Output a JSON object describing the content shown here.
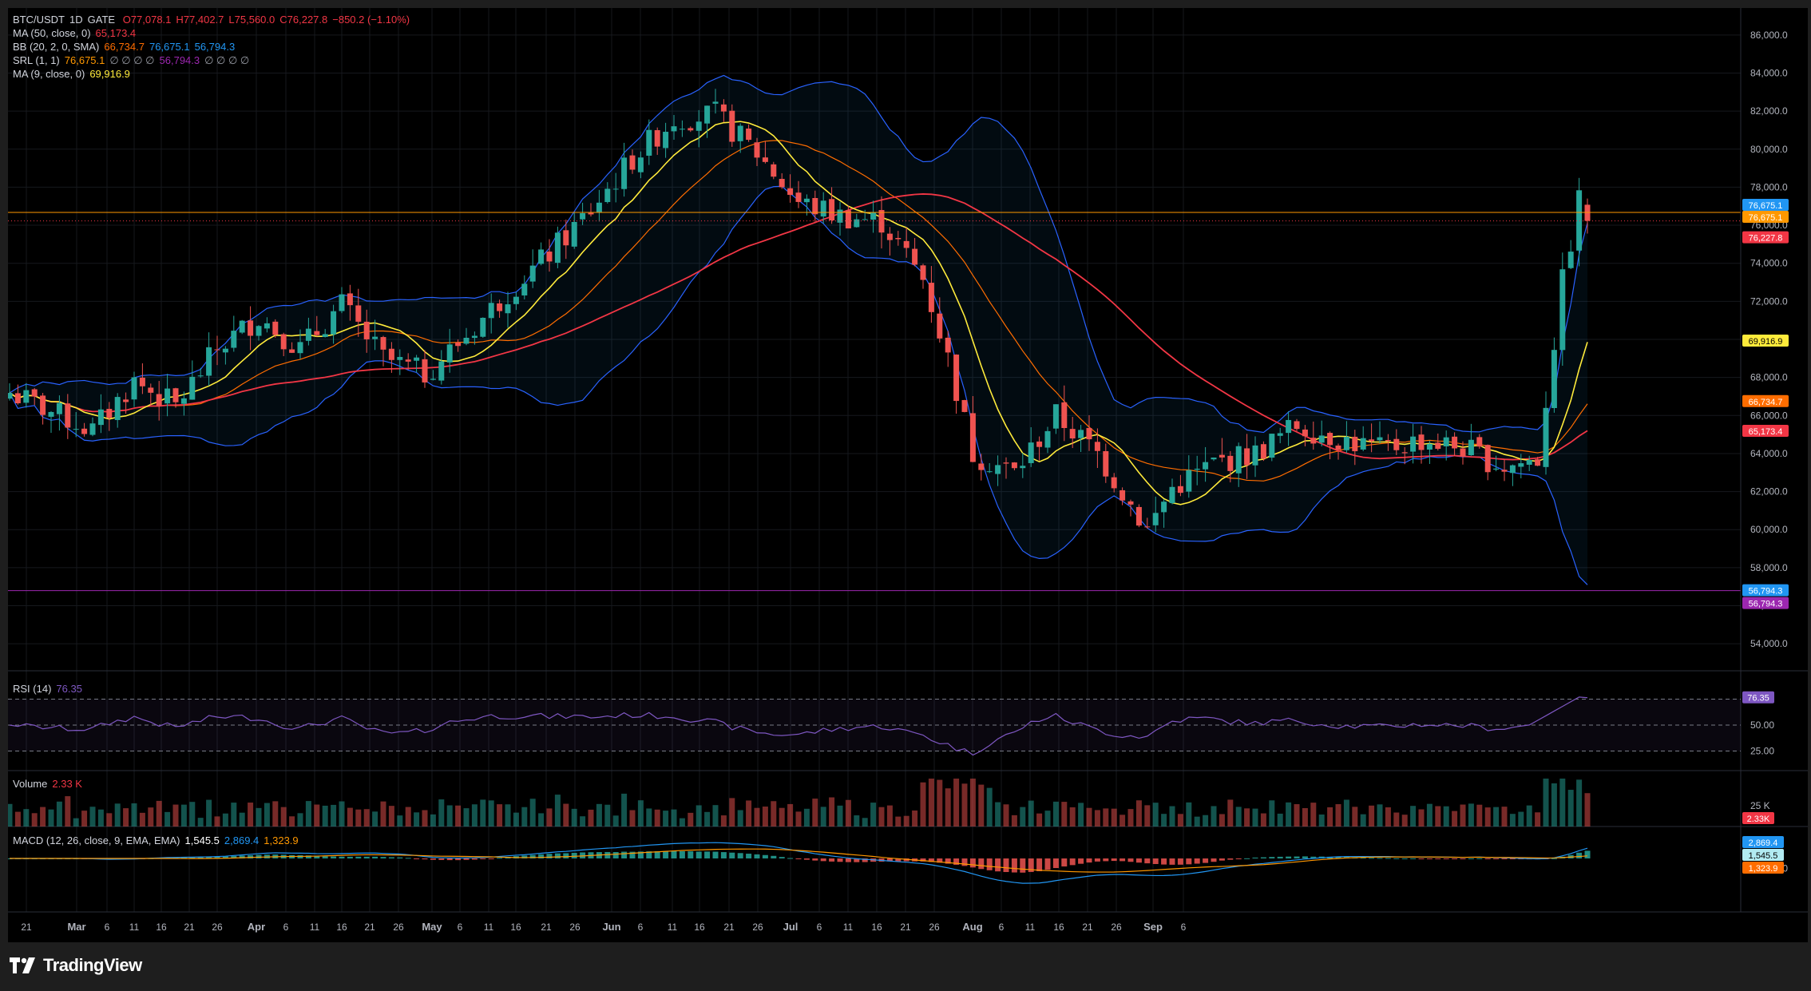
{
  "header": {
    "symbol": "BTC/USDT",
    "interval": "1D",
    "exchange": "GATE",
    "open": "O77,078.1",
    "high": "H77,402.7",
    "low": "L75,560.0",
    "close": "C76,227.8",
    "change": "−850.2 (−1.10%)"
  },
  "indicators": {
    "ma50": {
      "label": "MA (50, close, 0)",
      "value": "65,173.4"
    },
    "bb": {
      "label": "BB (20, 2, 0, SMA)",
      "basis": "66,734.7",
      "upper": "76,675.1",
      "lower": "56,794.3"
    },
    "srl": {
      "label": "SRL (1, 1)",
      "v1": "76,675.1",
      "mid": "∅ ∅ ∅ ∅",
      "v2": "56,794.3",
      "tail": "∅ ∅ ∅ ∅"
    },
    "ma9": {
      "label": "MA (9, close, 0)",
      "value": "69,916.9"
    },
    "rsi": {
      "label": "RSI (14)",
      "value": "76.35"
    },
    "volume": {
      "label": "Volume",
      "value": "2.33 K"
    },
    "macd": {
      "label": "MACD (12, 26, close, 9, EMA, EMA)",
      "hist": "1,545.5",
      "macd": "2,869.4",
      "signal": "1,323.9"
    }
  },
  "price_tags": [
    {
      "text": "76,675.1",
      "color": "#2196f3"
    },
    {
      "text": "76,675.1",
      "color": "#ff9800"
    },
    {
      "text": "76,227.8",
      "color": "#f23645"
    },
    {
      "text": "69,916.9",
      "color": "#ffeb3b"
    },
    {
      "text": "66,734.7",
      "color": "#ff6d00"
    },
    {
      "text": "65,173.4",
      "color": "#f23645"
    },
    {
      "text": "56,794.3",
      "color": "#2196f3"
    },
    {
      "text": "56,794.3",
      "color": "#9c27b0"
    }
  ],
  "pane_tags": {
    "rsi": "76.35",
    "volume": "2.33K",
    "macd": [
      "2,869.4",
      "1,545.5",
      "1,323.9"
    ]
  },
  "price_axis_labels": [
    "86,000.0",
    "84,000.0",
    "82,000.0",
    "80,000.0",
    "78,000.0",
    "76,000.0",
    "74,000.0",
    "72,000.0",
    "70,000.0",
    "68,000.0",
    "66,000.0",
    "64,000.0",
    "62,000.0",
    "60,000.0",
    "58,000.0",
    "56,000.0",
    "54,000.0"
  ],
  "rsi_axis_labels": [
    "75.00",
    "50.00",
    "25.00"
  ],
  "volume_axis_labels": [
    "25 K"
  ],
  "macd_axis_labels": [
    "2,500.0",
    "−2,500.0"
  ],
  "time_axis_labels": [
    "21",
    "Mar",
    "6",
    "11",
    "16",
    "21",
    "26",
    "Apr",
    "6",
    "11",
    "16",
    "21",
    "26",
    "May",
    "6",
    "11",
    "16",
    "21",
    "26",
    "Jun",
    "6",
    "11",
    "16",
    "21",
    "26",
    "Jul",
    "6",
    "11",
    "16",
    "21",
    "26",
    "Aug",
    "6",
    "11",
    "16",
    "21",
    "26",
    "Sep",
    "6"
  ],
  "branding": "TradingView",
  "colors": {
    "up": "#26a69a",
    "down": "#ef5350",
    "ma9": "#ffeb3b",
    "ma50": "#f23645",
    "bb_basis": "#ff6d00",
    "bb_band": "#2962ff",
    "rsi": "#7e57c2",
    "srl": "#9c27b0"
  },
  "chart_data": {
    "type": "candlestick",
    "symbol": "BTC/USDT",
    "interval": "1D",
    "ylim": [
      53000,
      87000
    ],
    "series": [
      {
        "name": "BTC/USDT",
        "anchors": [
          [
            0,
            67200
          ],
          [
            5,
            66200
          ],
          [
            10,
            65200
          ],
          [
            15,
            67800
          ],
          [
            20,
            66500
          ],
          [
            25,
            69500
          ],
          [
            30,
            71200
          ],
          [
            35,
            69500
          ],
          [
            40,
            71800
          ],
          [
            45,
            69000
          ],
          [
            50,
            68200
          ],
          [
            55,
            70200
          ],
          [
            60,
            72500
          ],
          [
            65,
            74500
          ],
          [
            70,
            76800
          ],
          [
            75,
            79500
          ],
          [
            80,
            81600
          ],
          [
            85,
            81800
          ],
          [
            90,
            79800
          ],
          [
            95,
            77200
          ],
          [
            100,
            76500
          ],
          [
            105,
            76200
          ],
          [
            110,
            73200
          ],
          [
            113,
            69000
          ],
          [
            116,
            64000
          ],
          [
            121,
            63000
          ],
          [
            126,
            66000
          ],
          [
            131,
            64000
          ],
          [
            137,
            60000
          ],
          [
            140,
            62200
          ],
          [
            145,
            63500
          ],
          [
            150,
            64000
          ],
          [
            155,
            65500
          ],
          [
            160,
            64800
          ],
          [
            165,
            64200
          ],
          [
            170,
            64700
          ],
          [
            175,
            64300
          ],
          [
            180,
            63300
          ],
          [
            184,
            63700
          ],
          [
            187,
            73000
          ],
          [
            189,
            77300
          ],
          [
            190,
            76227.8
          ]
        ]
      },
      {
        "name": "MA 9"
      },
      {
        "name": "MA 50"
      },
      {
        "name": "BB upper"
      },
      {
        "name": "BB basis"
      },
      {
        "name": "BB lower"
      }
    ],
    "last_candle": {
      "open": 77078.1,
      "high": 77402.7,
      "low": 75560.0,
      "close": 76227.8
    },
    "horizontal_lines": [
      76675.1,
      56794.3
    ],
    "rsi_last": 76.35,
    "volume_last": "2.33 K",
    "macd_last": {
      "macd": 2869.4,
      "signal": 1323.9,
      "hist": 1545.5
    }
  }
}
